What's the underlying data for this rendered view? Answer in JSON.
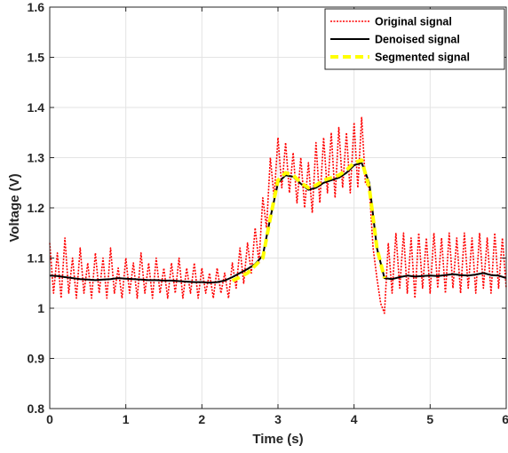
{
  "chart_data": {
    "type": "line",
    "title": "",
    "xlabel": "Time (s)",
    "ylabel": "Voltage (V)",
    "xlim": [
      0,
      6
    ],
    "ylim": [
      0.8,
      1.6
    ],
    "xticks": [
      "0",
      "1",
      "2",
      "3",
      "4",
      "5",
      "6"
    ],
    "yticks": [
      "0.8",
      "0.9",
      "1",
      "1.1",
      "1.2",
      "1.3",
      "1.4",
      "1.5",
      "1.6"
    ],
    "grid": true,
    "legend_position": "top-right",
    "series": [
      {
        "name": "Original signal",
        "color": "#ff0000",
        "style": "dotted",
        "x": [
          0.0,
          0.05,
          0.1,
          0.15,
          0.2,
          0.25,
          0.3,
          0.35,
          0.4,
          0.45,
          0.5,
          0.55,
          0.6,
          0.65,
          0.7,
          0.75,
          0.8,
          0.85,
          0.9,
          0.95,
          1.0,
          1.05,
          1.1,
          1.15,
          1.2,
          1.25,
          1.3,
          1.35,
          1.4,
          1.45,
          1.5,
          1.55,
          1.6,
          1.65,
          1.7,
          1.75,
          1.8,
          1.85,
          1.9,
          1.95,
          2.0,
          2.05,
          2.1,
          2.15,
          2.2,
          2.25,
          2.3,
          2.35,
          2.4,
          2.45,
          2.5,
          2.55,
          2.6,
          2.65,
          2.7,
          2.75,
          2.8,
          2.85,
          2.9,
          2.95,
          3.0,
          3.05,
          3.1,
          3.15,
          3.2,
          3.25,
          3.3,
          3.35,
          3.4,
          3.45,
          3.5,
          3.55,
          3.6,
          3.65,
          3.7,
          3.75,
          3.8,
          3.85,
          3.9,
          3.95,
          4.0,
          4.05,
          4.1,
          4.15,
          4.2,
          4.25,
          4.3,
          4.35,
          4.4,
          4.45,
          4.5,
          4.55,
          4.6,
          4.65,
          4.7,
          4.75,
          4.8,
          4.85,
          4.9,
          4.95,
          5.0,
          5.05,
          5.1,
          5.15,
          5.2,
          5.25,
          5.3,
          5.35,
          5.4,
          5.45,
          5.5,
          5.55,
          5.6,
          5.65,
          5.7,
          5.75,
          5.8,
          5.85,
          5.9,
          5.95,
          6.0
        ],
        "values": [
          1.13,
          1.03,
          1.11,
          1.02,
          1.14,
          1.03,
          1.1,
          1.02,
          1.12,
          1.03,
          1.09,
          1.02,
          1.11,
          1.03,
          1.1,
          1.02,
          1.12,
          1.03,
          1.08,
          1.02,
          1.1,
          1.03,
          1.09,
          1.02,
          1.11,
          1.03,
          1.09,
          1.02,
          1.1,
          1.03,
          1.08,
          1.02,
          1.09,
          1.03,
          1.1,
          1.02,
          1.08,
          1.03,
          1.09,
          1.02,
          1.08,
          1.03,
          1.07,
          1.02,
          1.08,
          1.03,
          1.07,
          1.02,
          1.09,
          1.04,
          1.12,
          1.05,
          1.13,
          1.07,
          1.16,
          1.09,
          1.22,
          1.16,
          1.3,
          1.22,
          1.34,
          1.24,
          1.33,
          1.23,
          1.31,
          1.21,
          1.3,
          1.2,
          1.29,
          1.19,
          1.33,
          1.21,
          1.34,
          1.23,
          1.35,
          1.22,
          1.36,
          1.24,
          1.35,
          1.23,
          1.37,
          1.24,
          1.38,
          1.25,
          1.24,
          1.12,
          1.06,
          1.01,
          0.99,
          1.13,
          1.03,
          1.15,
          1.04,
          1.15,
          1.03,
          1.14,
          1.02,
          1.15,
          1.04,
          1.14,
          1.03,
          1.15,
          1.04,
          1.14,
          1.03,
          1.15,
          1.04,
          1.14,
          1.03,
          1.15,
          1.04,
          1.14,
          1.03,
          1.15,
          1.04,
          1.14,
          1.03,
          1.15,
          1.04,
          1.14,
          1.04
        ]
      },
      {
        "name": "Denoised signal",
        "color": "#000000",
        "style": "solid",
        "x": [
          0.0,
          0.1,
          0.2,
          0.3,
          0.4,
          0.5,
          0.6,
          0.7,
          0.8,
          0.9,
          1.0,
          1.1,
          1.2,
          1.3,
          1.4,
          1.5,
          1.6,
          1.7,
          1.8,
          1.9,
          2.0,
          2.1,
          2.2,
          2.3,
          2.4,
          2.5,
          2.6,
          2.7,
          2.8,
          2.9,
          3.0,
          3.1,
          3.2,
          3.3,
          3.4,
          3.5,
          3.6,
          3.7,
          3.8,
          3.9,
          4.0,
          4.1,
          4.2,
          4.3,
          4.4,
          4.5,
          4.6,
          4.7,
          4.8,
          4.9,
          5.0,
          5.1,
          5.2,
          5.3,
          5.4,
          5.5,
          5.6,
          5.7,
          5.8,
          5.9,
          6.0
        ],
        "values": [
          1.065,
          1.064,
          1.062,
          1.06,
          1.058,
          1.057,
          1.056,
          1.057,
          1.058,
          1.06,
          1.059,
          1.058,
          1.057,
          1.056,
          1.056,
          1.055,
          1.055,
          1.054,
          1.053,
          1.052,
          1.052,
          1.051,
          1.052,
          1.055,
          1.062,
          1.07,
          1.078,
          1.088,
          1.105,
          1.18,
          1.25,
          1.265,
          1.262,
          1.248,
          1.236,
          1.24,
          1.25,
          1.255,
          1.26,
          1.27,
          1.285,
          1.29,
          1.25,
          1.12,
          1.06,
          1.058,
          1.062,
          1.065,
          1.063,
          1.064,
          1.065,
          1.064,
          1.066,
          1.068,
          1.066,
          1.065,
          1.067,
          1.07,
          1.066,
          1.065,
          1.06
        ]
      },
      {
        "name": "Segmented signal",
        "color": "#ffff00",
        "style": "dashed",
        "x": [
          2.4,
          2.5,
          2.6,
          2.7,
          2.8,
          2.9,
          3.0,
          3.1,
          3.2,
          3.3,
          3.4,
          3.5,
          3.6,
          3.7,
          3.8,
          3.9,
          4.0,
          4.1,
          4.2,
          4.3,
          4.4
        ],
        "values": [
          1.055,
          1.062,
          1.07,
          1.085,
          1.1,
          1.18,
          1.255,
          1.27,
          1.265,
          1.25,
          1.24,
          1.245,
          1.255,
          1.26,
          1.265,
          1.275,
          1.29,
          1.295,
          1.24,
          1.12,
          1.06
        ]
      }
    ]
  }
}
